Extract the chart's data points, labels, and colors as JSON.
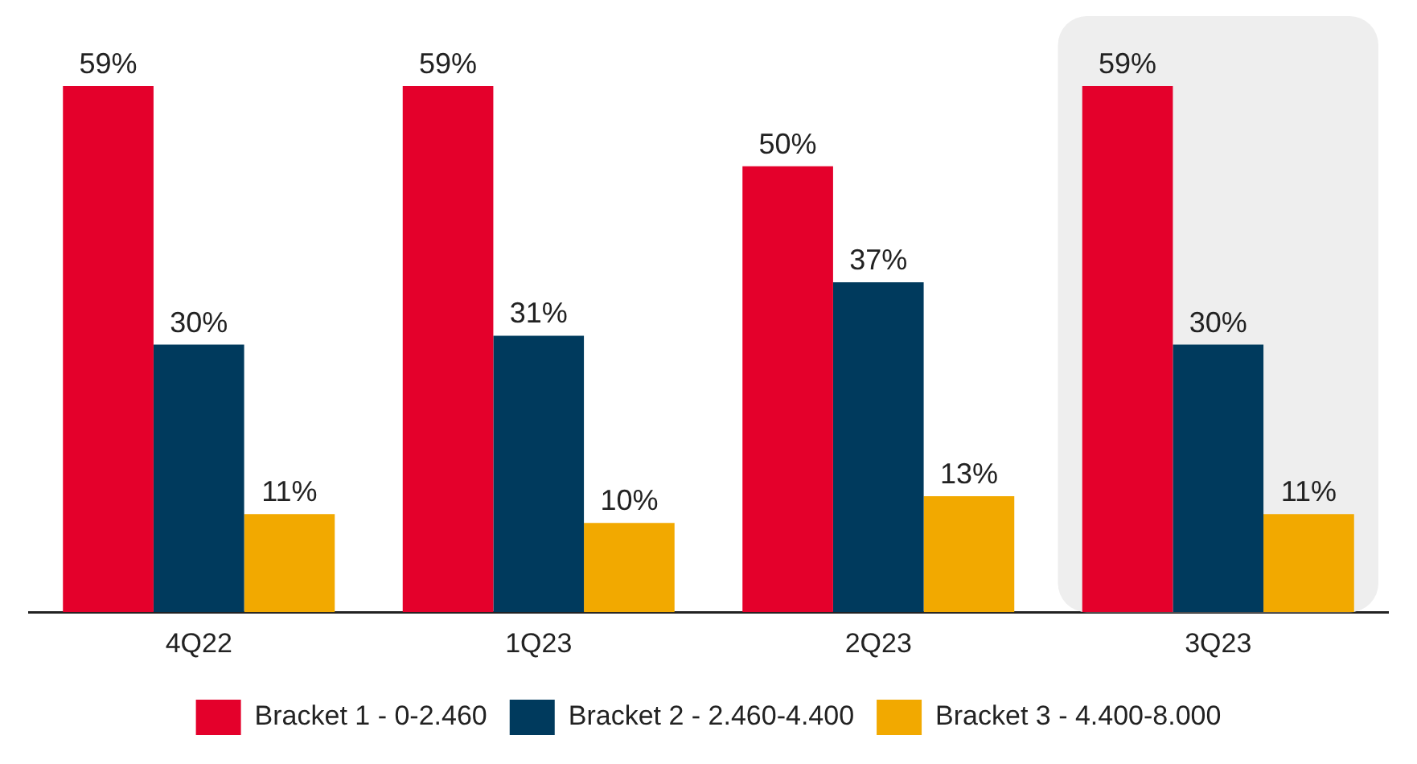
{
  "chart_data": {
    "type": "bar",
    "categories": [
      "4Q22",
      "1Q23",
      "2Q23",
      "3Q23"
    ],
    "series": [
      {
        "name": "Bracket 1 - 0-2.460",
        "color": "#e4002b",
        "values": [
          59,
          59,
          50,
          59
        ],
        "value_labels": [
          "59%",
          "59%",
          "50%",
          "59%"
        ]
      },
      {
        "name": "Bracket 2 - 2.460-4.400",
        "color": "#003a5d",
        "values": [
          30,
          31,
          37,
          30
        ],
        "value_labels": [
          "30%",
          "31%",
          "37%",
          "30%"
        ]
      },
      {
        "name": "Bracket 3 - 4.400-8.000",
        "color": "#f2a900",
        "values": [
          11,
          10,
          13,
          11
        ],
        "value_labels": [
          "11%",
          "10%",
          "13%",
          "11%"
        ]
      }
    ],
    "bands": [
      {
        "axis": "x",
        "from": "3Q23",
        "to": "3Q23",
        "color": "#eeeeee"
      }
    ],
    "legend": "bottom",
    "grid": false
  }
}
